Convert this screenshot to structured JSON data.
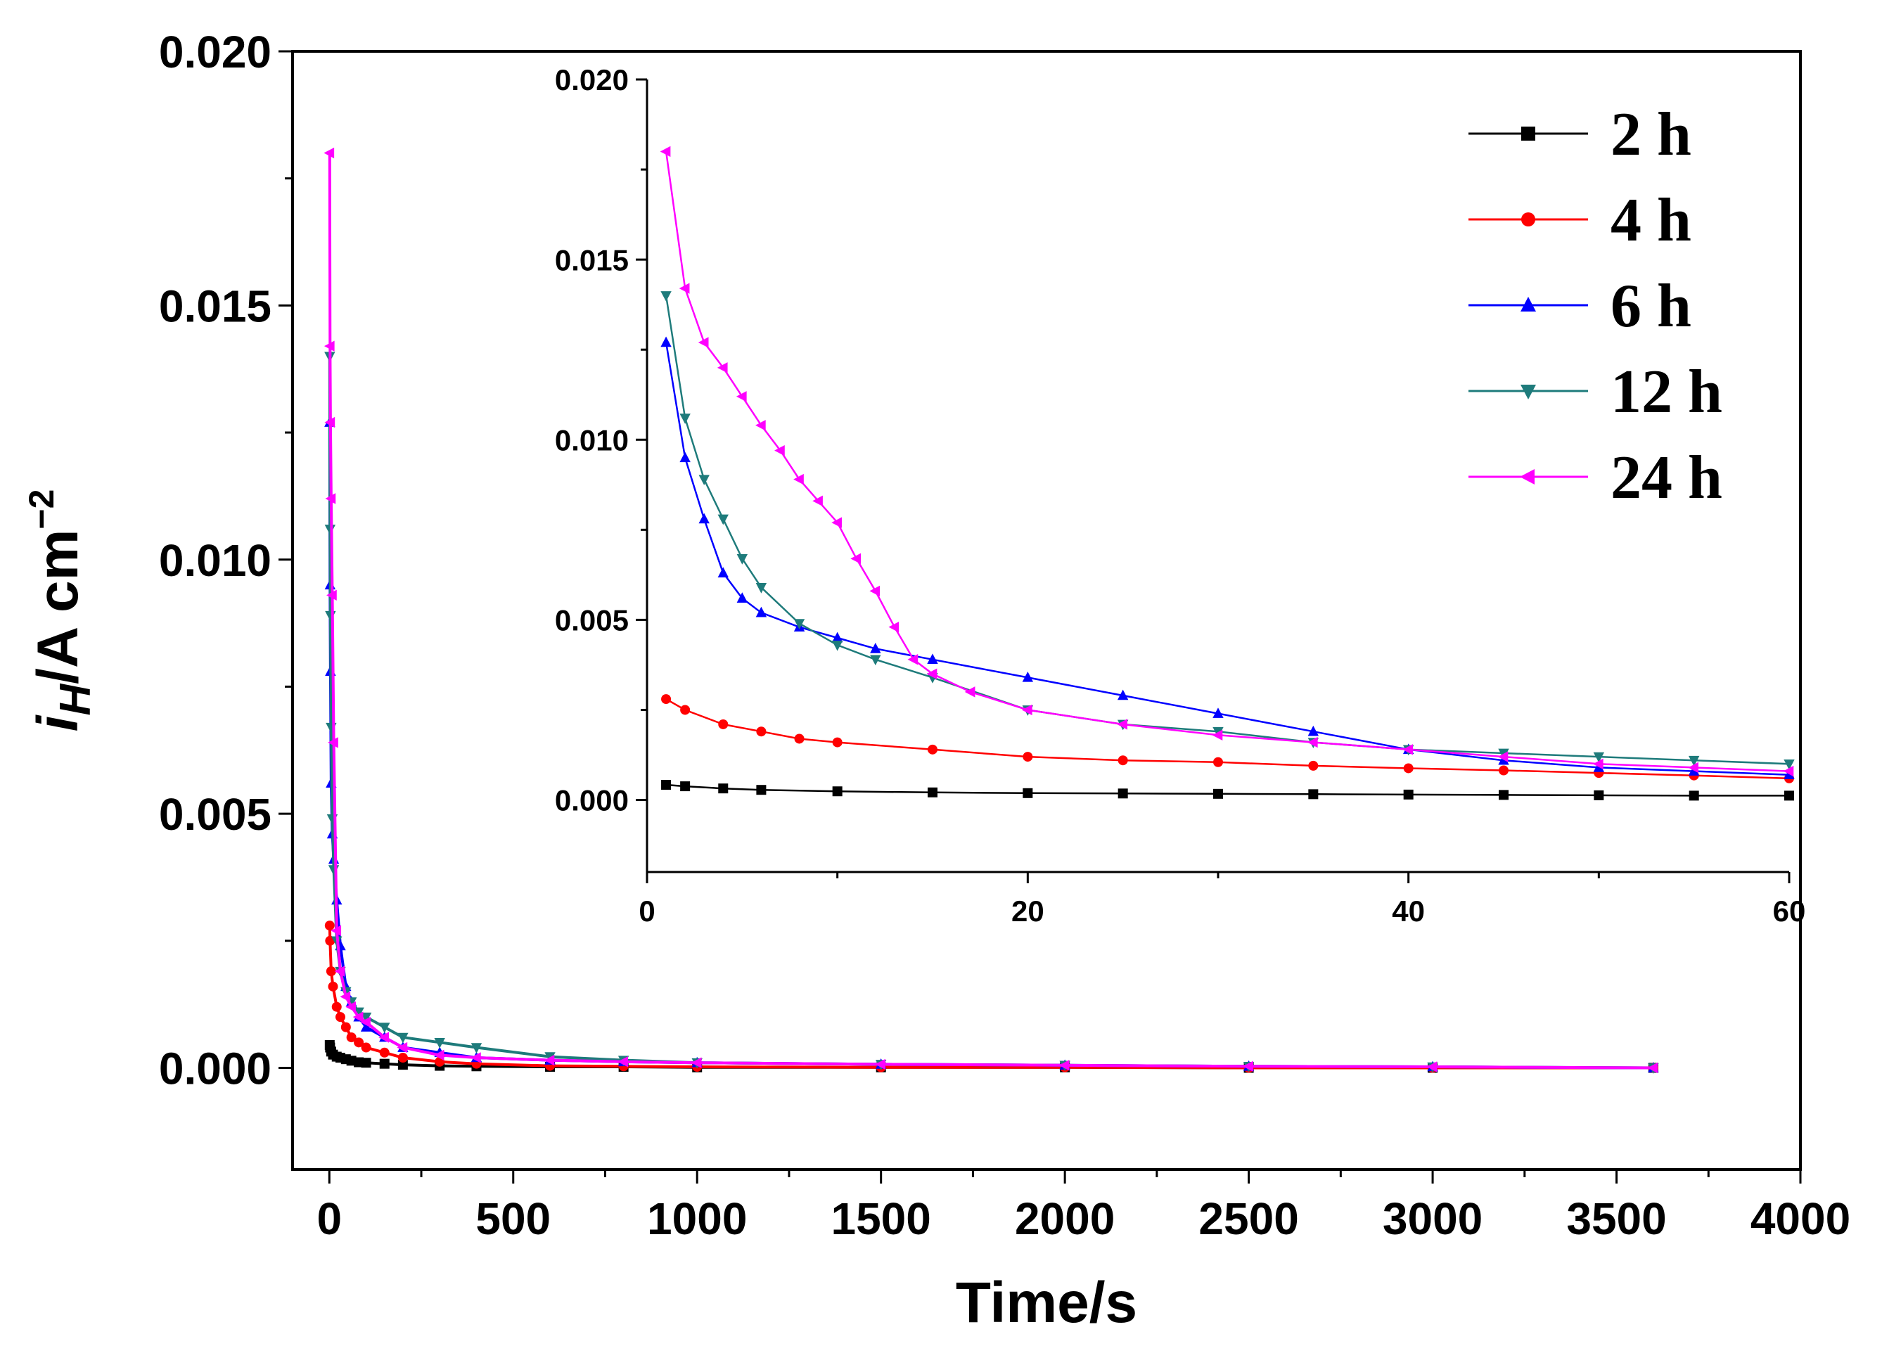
{
  "chart_data": [
    {
      "id": "main",
      "type": "line",
      "title": "",
      "xlabel": "Time/s",
      "ylabel": {
        "i": "i",
        "sub": "H",
        "unit": "/A cm",
        "sup": "−2"
      },
      "xlim": [
        -100,
        4000
      ],
      "ylim": [
        -0.002,
        0.02
      ],
      "xticks": [
        0,
        500,
        1000,
        1500,
        2000,
        2500,
        3000,
        3500,
        4000
      ],
      "xtick_labels": [
        "0",
        "500",
        "1000",
        "1500",
        "2000",
        "2500",
        "3000",
        "3500",
        "4000"
      ],
      "yticks": [
        0.0,
        0.005,
        0.01,
        0.015,
        0.02
      ],
      "ytick_labels": [
        "0.000",
        "0.005",
        "0.010",
        "0.015",
        "0.020"
      ],
      "series": [
        {
          "name": "2 h",
          "color": "#000000",
          "marker": "square",
          "x": [
            1,
            2,
            5,
            10,
            20,
            30,
            45,
            60,
            80,
            100,
            150,
            200,
            300,
            400,
            600,
            800,
            1000,
            1500,
            2000,
            2500,
            3000,
            3600
          ],
          "y": [
            0.00045,
            0.0004,
            0.00032,
            0.00026,
            0.00022,
            0.0002,
            0.00017,
            0.00014,
            0.00011,
            0.0001,
            8e-05,
            6e-05,
            4e-05,
            3e-05,
            2e-05,
            2e-05,
            1e-05,
            1e-05,
            1e-05,
            0.0,
            0.0,
            0.0
          ]
        },
        {
          "name": "4 h",
          "color": "#ff0000",
          "marker": "circle",
          "x": [
            1,
            2,
            5,
            10,
            20,
            30,
            45,
            60,
            80,
            100,
            150,
            200,
            300,
            400,
            600,
            800,
            1000,
            1500,
            2000,
            2500,
            3000,
            3600
          ],
          "y": [
            0.0028,
            0.0025,
            0.0019,
            0.0016,
            0.0012,
            0.001,
            0.0008,
            0.0006,
            0.0005,
            0.0004,
            0.0003,
            0.0002,
            0.00012,
            8e-05,
            4e-05,
            3e-05,
            2e-05,
            1e-05,
            1e-05,
            0.0,
            0.0,
            0.0
          ]
        },
        {
          "name": "6 h",
          "color": "#0000ff",
          "marker": "triangle-up",
          "x": [
            1,
            2,
            3,
            5,
            8,
            12,
            20,
            30,
            45,
            60,
            80,
            100,
            150,
            200,
            300,
            400,
            600,
            800,
            1000,
            1500,
            2000,
            2500,
            3000,
            3600
          ],
          "y": [
            0.0127,
            0.0095,
            0.0078,
            0.0056,
            0.0046,
            0.0041,
            0.0033,
            0.0024,
            0.0016,
            0.0013,
            0.001,
            0.0008,
            0.0006,
            0.0004,
            0.0003,
            0.0002,
            0.00015,
            0.00012,
            0.0001,
            7e-05,
            5e-05,
            3e-05,
            2e-05,
            0.0
          ]
        },
        {
          "name": "12 h",
          "color": "#1e7b7b",
          "marker": "triangle-down",
          "x": [
            1,
            2,
            3,
            5,
            8,
            12,
            20,
            30,
            45,
            60,
            80,
            100,
            150,
            200,
            300,
            400,
            600,
            800,
            1000,
            1500,
            2000,
            2500,
            3000,
            3600
          ],
          "y": [
            0.014,
            0.0106,
            0.0089,
            0.0067,
            0.0049,
            0.0039,
            0.0025,
            0.0019,
            0.0015,
            0.0013,
            0.0011,
            0.001,
            0.0008,
            0.0006,
            0.0005,
            0.0004,
            0.00022,
            0.00015,
            0.0001,
            7e-05,
            5e-05,
            3e-05,
            2e-05,
            0.0
          ]
        },
        {
          "name": "24 h",
          "color": "#ff00ff",
          "marker": "triangle-left",
          "x": [
            1,
            2,
            3,
            5,
            8,
            12,
            20,
            30,
            45,
            60,
            80,
            100,
            150,
            200,
            300,
            400,
            600,
            800,
            1000,
            1500,
            2000,
            2500,
            3000,
            3600
          ],
          "y": [
            0.018,
            0.0142,
            0.0127,
            0.0112,
            0.0093,
            0.0064,
            0.0027,
            0.0019,
            0.0014,
            0.0012,
            0.001,
            0.0009,
            0.0006,
            0.0004,
            0.00025,
            0.0002,
            0.00015,
            0.00012,
            0.0001,
            7e-05,
            5e-05,
            3e-05,
            2e-05,
            0.0
          ]
        }
      ]
    },
    {
      "id": "inset",
      "type": "line",
      "title": "",
      "xlabel": "",
      "ylabel": "",
      "xlim": [
        0,
        60
      ],
      "ylim": [
        -0.002,
        0.02
      ],
      "xticks": [
        0,
        20,
        40,
        60
      ],
      "xtick_labels": [
        "0",
        "20",
        "40",
        "60"
      ],
      "yticks": [
        0.0,
        0.005,
        0.01,
        0.015,
        0.02
      ],
      "ytick_labels": [
        "0.000",
        "0.005",
        "0.010",
        "0.015",
        "0.020"
      ],
      "legend": {
        "position": "top-right",
        "entries": [
          "2 h",
          "4 h",
          "6 h",
          "12 h",
          "24 h"
        ]
      },
      "series": [
        {
          "name": "2 h",
          "color": "#000000",
          "marker": "square",
          "x": [
            1,
            2,
            4,
            6,
            10,
            15,
            20,
            25,
            30,
            35,
            40,
            45,
            50,
            55,
            60
          ],
          "y": [
            0.00042,
            0.00038,
            0.00032,
            0.00028,
            0.00024,
            0.00021,
            0.00019,
            0.00018,
            0.00017,
            0.00016,
            0.00015,
            0.00014,
            0.00013,
            0.00012,
            0.00012
          ]
        },
        {
          "name": "4 h",
          "color": "#ff0000",
          "marker": "circle",
          "x": [
            1,
            2,
            4,
            6,
            8,
            10,
            15,
            20,
            25,
            30,
            35,
            40,
            45,
            50,
            55,
            60
          ],
          "y": [
            0.0028,
            0.0025,
            0.0021,
            0.0019,
            0.0017,
            0.0016,
            0.0014,
            0.0012,
            0.0011,
            0.00105,
            0.00095,
            0.00088,
            0.00082,
            0.00075,
            0.00068,
            0.0006
          ]
        },
        {
          "name": "6 h",
          "color": "#0000ff",
          "marker": "triangle-up",
          "x": [
            1,
            2,
            3,
            4,
            5,
            6,
            8,
            10,
            12,
            15,
            20,
            25,
            30,
            35,
            40,
            45,
            50,
            55,
            60
          ],
          "y": [
            0.0127,
            0.0095,
            0.0078,
            0.0063,
            0.0056,
            0.0052,
            0.0048,
            0.0045,
            0.0042,
            0.0039,
            0.0034,
            0.0029,
            0.0024,
            0.0019,
            0.0014,
            0.0011,
            0.0009,
            0.0008,
            0.0007
          ]
        },
        {
          "name": "12 h",
          "color": "#1e7b7b",
          "marker": "triangle-down",
          "x": [
            1,
            2,
            3,
            4,
            5,
            6,
            8,
            10,
            12,
            15,
            20,
            25,
            30,
            35,
            40,
            45,
            50,
            55,
            60
          ],
          "y": [
            0.014,
            0.0106,
            0.0089,
            0.0078,
            0.0067,
            0.0059,
            0.0049,
            0.0043,
            0.0039,
            0.0034,
            0.0025,
            0.0021,
            0.0019,
            0.0016,
            0.0014,
            0.0013,
            0.0012,
            0.0011,
            0.001
          ]
        },
        {
          "name": "24 h",
          "color": "#ff00ff",
          "marker": "triangle-left",
          "x": [
            1,
            2,
            3,
            4,
            5,
            6,
            7,
            8,
            9,
            10,
            11,
            12,
            13,
            14,
            15,
            17,
            20,
            25,
            30,
            35,
            40,
            45,
            50,
            55,
            60
          ],
          "y": [
            0.018,
            0.0142,
            0.0127,
            0.012,
            0.0112,
            0.0104,
            0.0097,
            0.0089,
            0.0083,
            0.0077,
            0.0067,
            0.0058,
            0.0048,
            0.0039,
            0.0035,
            0.003,
            0.0025,
            0.0021,
            0.0018,
            0.0016,
            0.0014,
            0.0012,
            0.001,
            0.0009,
            0.0008
          ]
        }
      ]
    }
  ]
}
